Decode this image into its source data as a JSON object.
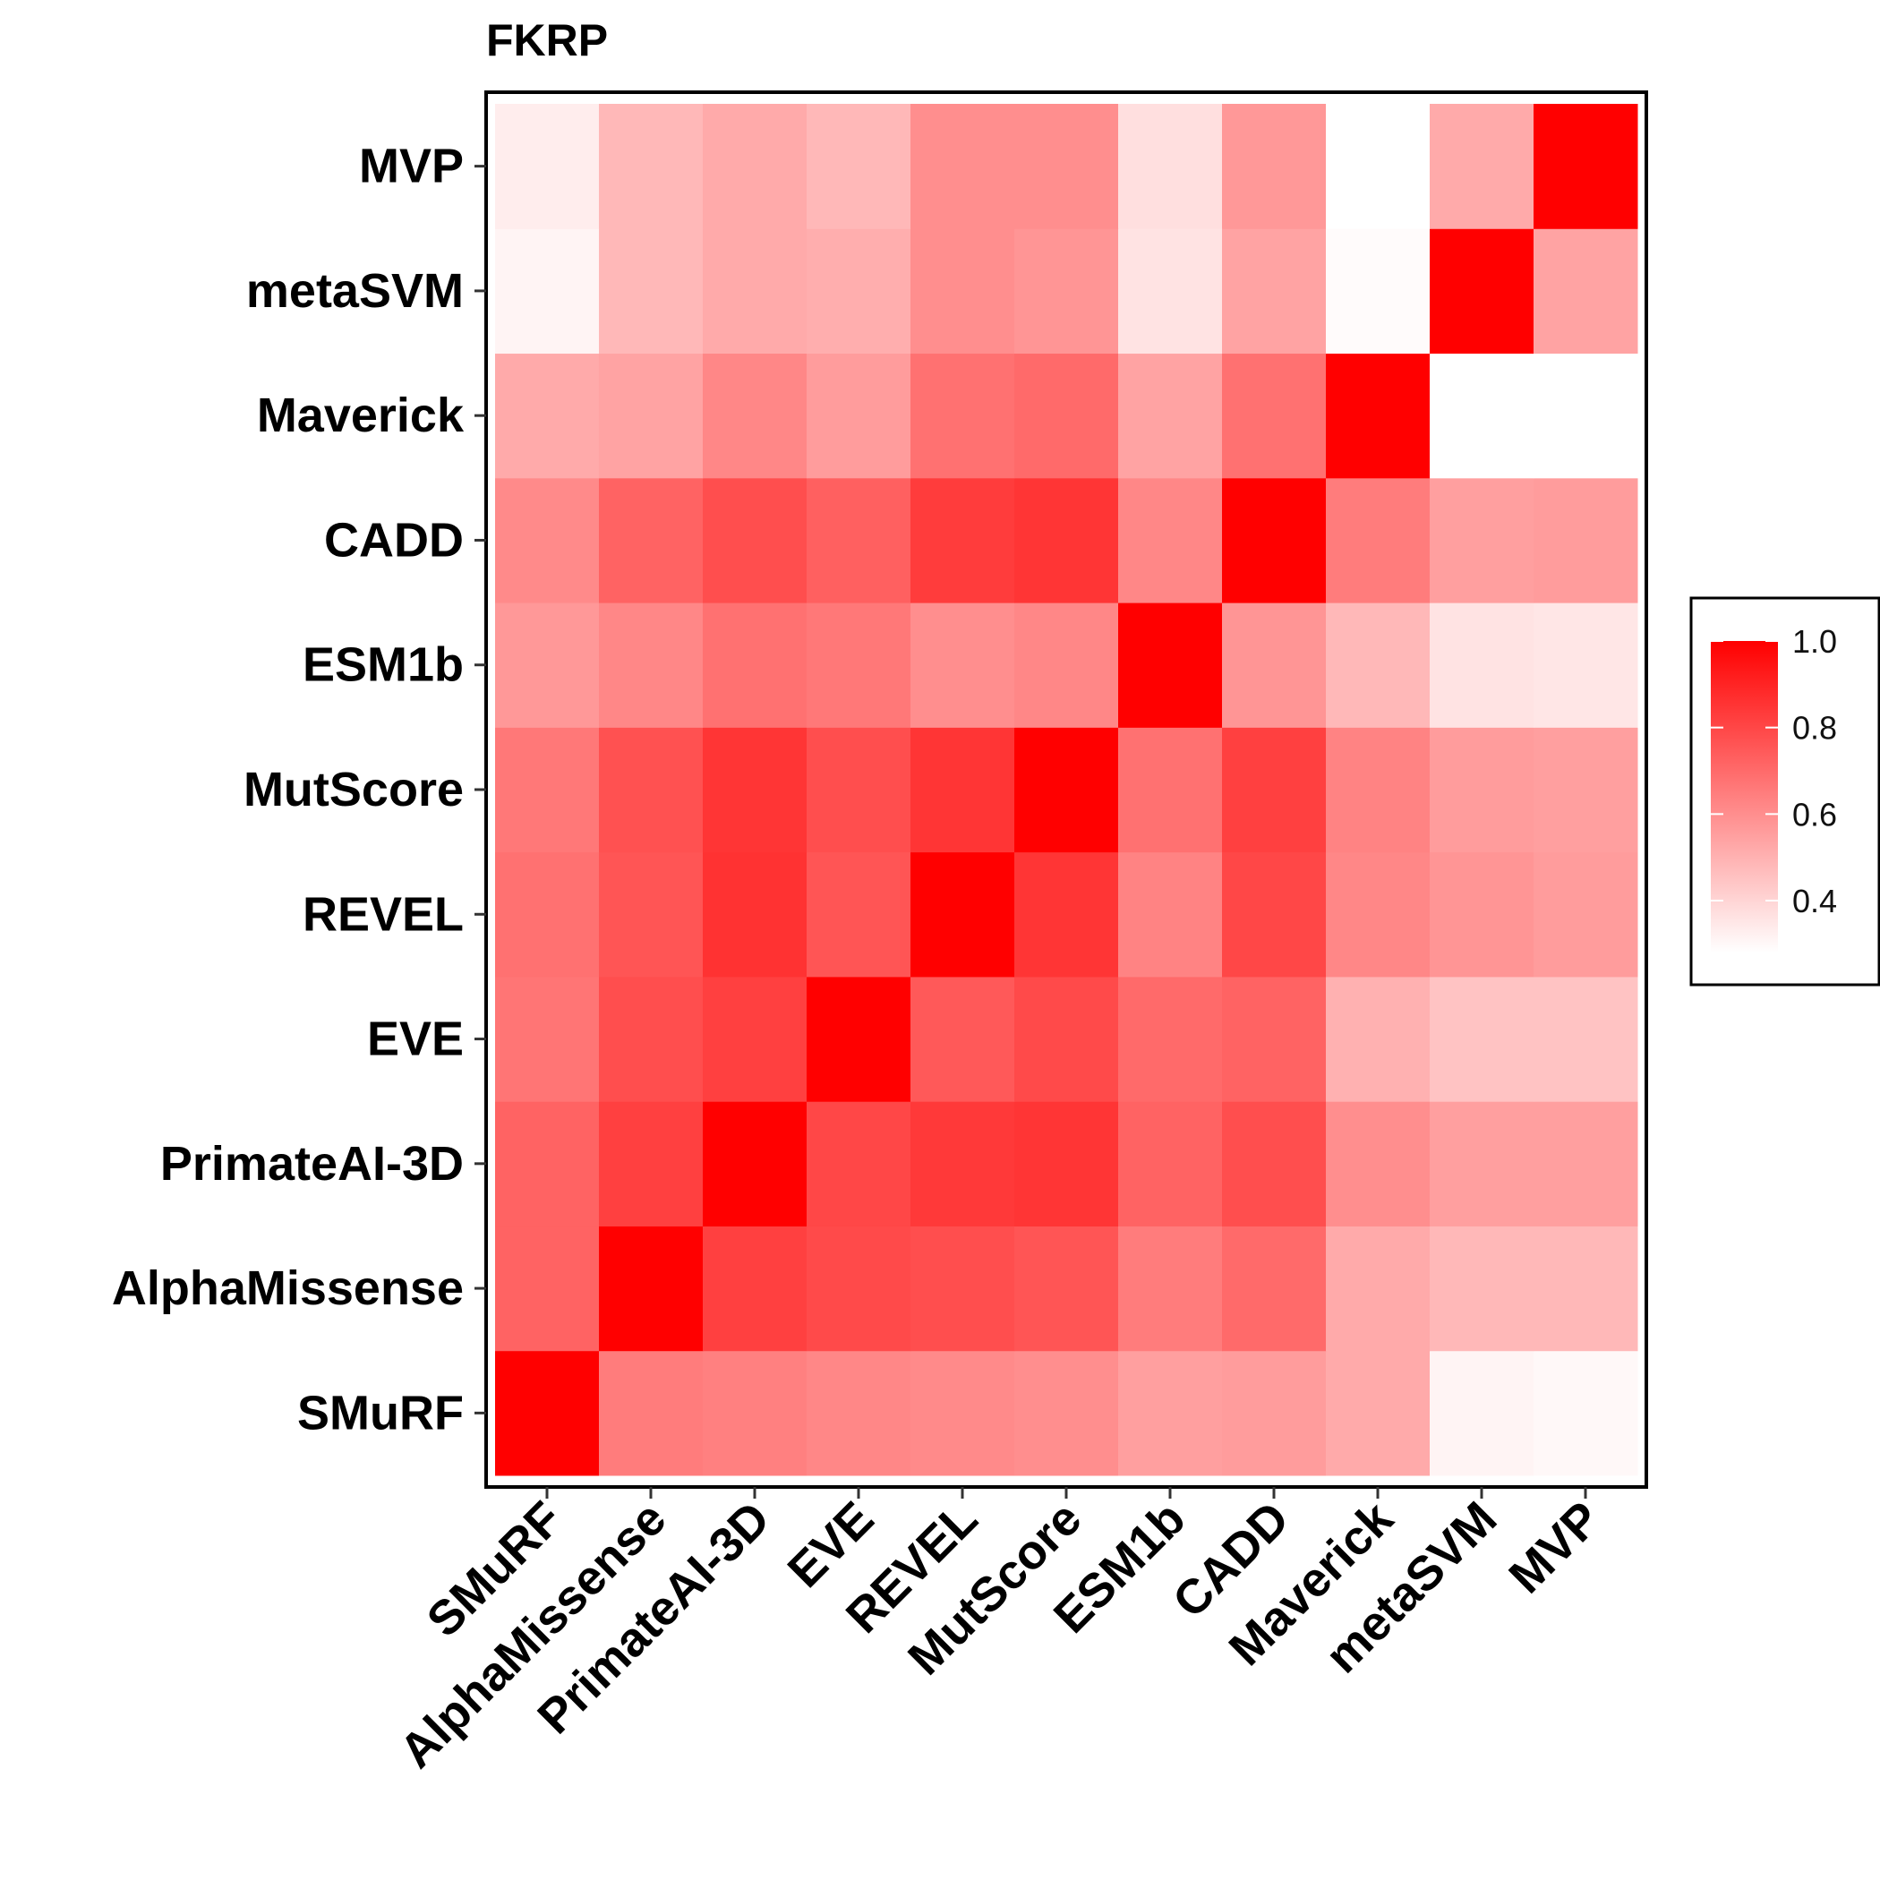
{
  "chart_data": {
    "type": "heatmap",
    "title": "FKRP",
    "xlabel": "",
    "ylabel": "",
    "x_categories": [
      "SMuRF",
      "AlphaMissense",
      "PrimateAI-3D",
      "EVE",
      "REVEL",
      "MutScore",
      "ESM1b",
      "CADD",
      "Maverick",
      "metaSVM",
      "MVP"
    ],
    "y_categories": [
      "SMuRF",
      "AlphaMissense",
      "PrimateAI-3D",
      "EVE",
      "REVEL",
      "MutScore",
      "ESM1b",
      "CADD",
      "Maverick",
      "metaSVM",
      "MVP"
    ],
    "values": [
      [
        1.0,
        0.65,
        0.64,
        0.62,
        0.61,
        0.6,
        0.55,
        0.56,
        0.52,
        0.31,
        0.3
      ],
      [
        0.72,
        1.0,
        0.82,
        0.79,
        0.78,
        0.76,
        0.65,
        0.7,
        0.52,
        0.48,
        0.48
      ],
      [
        0.72,
        0.82,
        1.0,
        0.8,
        0.84,
        0.85,
        0.72,
        0.78,
        0.6,
        0.55,
        0.55
      ],
      [
        0.67,
        0.78,
        0.82,
        1.0,
        0.75,
        0.79,
        0.7,
        0.72,
        0.5,
        0.45,
        0.45
      ],
      [
        0.68,
        0.76,
        0.86,
        0.76,
        1.0,
        0.85,
        0.63,
        0.8,
        0.62,
        0.58,
        0.56
      ],
      [
        0.66,
        0.77,
        0.85,
        0.78,
        0.85,
        1.0,
        0.68,
        0.82,
        0.63,
        0.56,
        0.55
      ],
      [
        0.57,
        0.62,
        0.68,
        0.66,
        0.6,
        0.62,
        1.0,
        0.58,
        0.48,
        0.36,
        0.35
      ],
      [
        0.61,
        0.72,
        0.78,
        0.73,
        0.83,
        0.85,
        0.62,
        1.0,
        0.65,
        0.55,
        0.56
      ],
      [
        0.52,
        0.54,
        0.62,
        0.56,
        0.68,
        0.7,
        0.54,
        0.68,
        1.0,
        0.28,
        0.28
      ],
      [
        0.31,
        0.48,
        0.52,
        0.51,
        0.6,
        0.58,
        0.36,
        0.54,
        0.29,
        1.0,
        0.54
      ],
      [
        0.33,
        0.48,
        0.52,
        0.48,
        0.6,
        0.6,
        0.37,
        0.57,
        0.28,
        0.52,
        1.0
      ]
    ],
    "color_scale": {
      "min": 0.28,
      "max": 1.0,
      "low": "#ffffff",
      "high": "#ff0000"
    },
    "legend": {
      "ticks": [
        "0.4",
        "0.6",
        "0.8",
        "1.0"
      ],
      "placement": "right"
    },
    "grid": false
  }
}
